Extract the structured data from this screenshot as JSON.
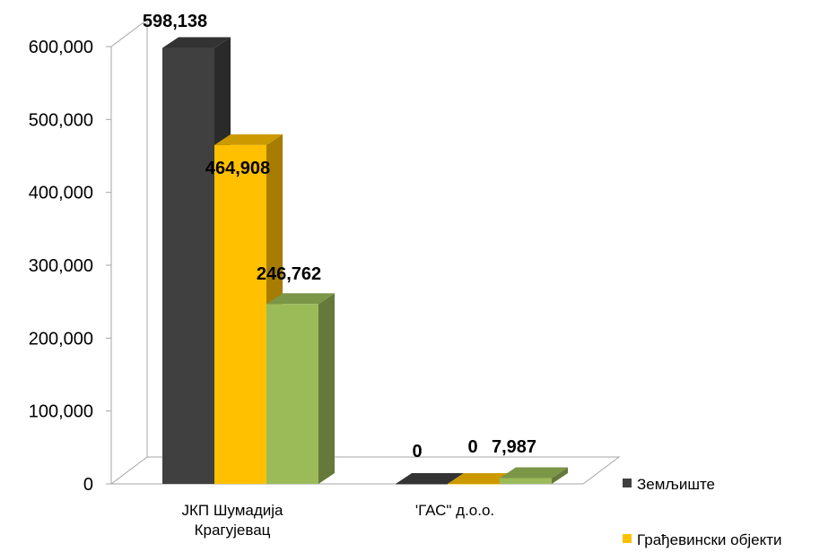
{
  "chart_data": {
    "type": "bar",
    "categories": [
      "ЈКП Шумадија\nКрагујевац",
      "'ГАС\" д.о.о."
    ],
    "series": [
      {
        "name": "Земљиште",
        "values": [
          598138,
          0
        ],
        "color": "#404040"
      },
      {
        "name": "Грађевински објекти",
        "values": [
          464908,
          0
        ],
        "color": "#FFC000"
      },
      {
        "name": "",
        "values": [
          246762,
          7987
        ],
        "color": "#9BBB59"
      }
    ],
    "data_labels": [
      [
        "598,138",
        "0"
      ],
      [
        "464,908",
        "0"
      ],
      [
        "246,762",
        "7,987"
      ]
    ],
    "y_ticks": [
      "0",
      "100,000",
      "200,000",
      "300,000",
      "400,000",
      "500,000",
      "600,000"
    ],
    "ylim": [
      0,
      600000
    ],
    "grid": false,
    "legend_position": "right-bottom",
    "style": "3d-clustered-column"
  }
}
